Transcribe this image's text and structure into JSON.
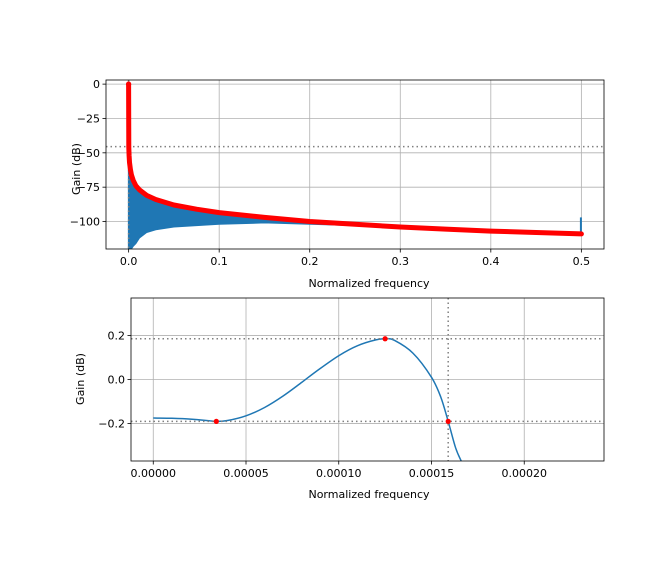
{
  "colors": {
    "line": "#1f77b4",
    "fill": "#1f77b4",
    "marker": "#ff0000",
    "grid": "#b0b0b0",
    "ref_line": "#808080",
    "axes": "#000000"
  },
  "chart_data": [
    {
      "type": "area",
      "title": "",
      "xlabel": "Normalized frequency",
      "ylabel": "Gain (dB)",
      "xlim": [
        -0.025,
        0.525
      ],
      "ylim": [
        -120,
        3
      ],
      "xticks": [
        0.0,
        0.1,
        0.2,
        0.3,
        0.4,
        0.5
      ],
      "xtick_labels": [
        "0.0",
        "0.1",
        "0.2",
        "0.3",
        "0.4",
        "0.5"
      ],
      "yticks": [
        0,
        -25,
        -50,
        -75,
        -100
      ],
      "ytick_labels": [
        "0",
        "−25",
        "−50",
        "−75",
        "−100"
      ],
      "grid": true,
      "hline": -45.5,
      "vline": 0.0,
      "series": [
        {
          "kind": "spectrum_envelope",
          "x": [
            0.0,
            0.0002,
            0.0005,
            0.001,
            0.002,
            0.003,
            0.005,
            0.008,
            0.012,
            0.02,
            0.03,
            0.05,
            0.075,
            0.1,
            0.15,
            0.2,
            0.25,
            0.3,
            0.35,
            0.4,
            0.45,
            0.5
          ],
          "upper_db": [
            0,
            -46,
            -52,
            -57,
            -62,
            -66,
            -70,
            -74,
            -77,
            -81,
            -84,
            -88,
            -91,
            -93.5,
            -97,
            -100,
            -102,
            -104,
            -105.5,
            -107,
            -108,
            -109
          ],
          "lower_db": [
            -120,
            -120,
            -120,
            -120,
            -120,
            -120,
            -118,
            -116,
            -112,
            -108,
            -106,
            -104,
            -103,
            -102,
            -101,
            -102,
            -103,
            -104,
            -105.5,
            -107,
            -108,
            -109
          ]
        },
        {
          "kind": "peaks",
          "x": [
            0.0,
            0.0002,
            0.0005,
            0.001,
            0.002,
            0.003,
            0.005,
            0.008,
            0.012,
            0.02,
            0.03,
            0.05,
            0.075,
            0.1,
            0.15,
            0.2,
            0.25,
            0.3,
            0.35,
            0.4,
            0.45,
            0.5
          ],
          "y": [
            0,
            -46,
            -52,
            -57,
            -62,
            -66,
            -70,
            -74,
            -77,
            -81,
            -84,
            -88,
            -91,
            -93.5,
            -97,
            -100,
            -102,
            -104,
            -105.5,
            -107,
            -108,
            -109
          ]
        },
        {
          "kind": "spike",
          "x": 0.4995,
          "y_from": -109,
          "y_to": -97
        }
      ]
    },
    {
      "type": "line",
      "title": "",
      "xlabel": "Normalized frequency",
      "ylabel": "Gain (dB)",
      "xlim": [
        -1.2e-05,
        0.000243
      ],
      "ylim": [
        -0.37,
        0.37
      ],
      "xticks": [
        0.0,
        5e-05,
        0.0001,
        0.00015,
        0.0002
      ],
      "xtick_labels": [
        "0.00000",
        "0.00005",
        "0.00010",
        "0.00015",
        "0.00020"
      ],
      "yticks": [
        0.2,
        0.0,
        -0.2
      ],
      "ytick_labels": [
        "0.2",
        "0.0",
        "−0.2"
      ],
      "grid": true,
      "hlines": [
        0.185,
        -0.19
      ],
      "vline": 0.000159,
      "series": [
        {
          "kind": "line",
          "x": [
            0.0,
            1e-05,
            2e-05,
            3e-05,
            3.4e-05,
            4e-05,
            5e-05,
            6e-05,
            7e-05,
            8e-05,
            9e-05,
            0.0001,
            0.00011,
            0.00012,
            0.000125,
            0.00013,
            0.00014,
            0.00015,
            0.000155,
            0.000159,
            0.000163,
            0.000166
          ],
          "y": [
            -0.175,
            -0.176,
            -0.18,
            -0.187,
            -0.19,
            -0.186,
            -0.165,
            -0.127,
            -0.075,
            -0.013,
            0.05,
            0.108,
            0.153,
            0.18,
            0.185,
            0.178,
            0.12,
            0.01,
            -0.08,
            -0.19,
            -0.31,
            -0.37
          ]
        },
        {
          "kind": "markers",
          "x": [
            3.4e-05,
            0.000125,
            0.000159
          ],
          "y": [
            -0.19,
            0.185,
            -0.19
          ]
        }
      ]
    }
  ]
}
